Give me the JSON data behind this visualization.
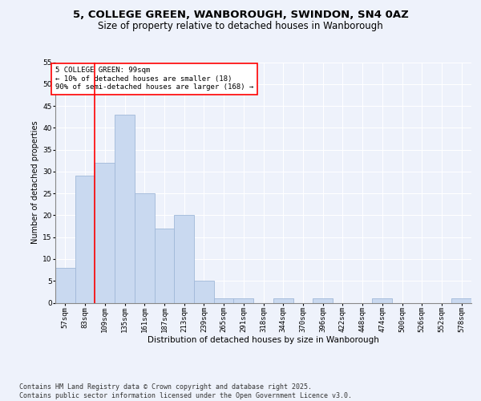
{
  "title1": "5, COLLEGE GREEN, WANBOROUGH, SWINDON, SN4 0AZ",
  "title2": "Size of property relative to detached houses in Wanborough",
  "xlabel": "Distribution of detached houses by size in Wanborough",
  "ylabel": "Number of detached properties",
  "bar_labels": [
    "57sqm",
    "83sqm",
    "109sqm",
    "135sqm",
    "161sqm",
    "187sqm",
    "213sqm",
    "239sqm",
    "265sqm",
    "291sqm",
    "318sqm",
    "344sqm",
    "370sqm",
    "396sqm",
    "422sqm",
    "448sqm",
    "474sqm",
    "500sqm",
    "526sqm",
    "552sqm",
    "578sqm"
  ],
  "bar_values": [
    8,
    29,
    32,
    43,
    25,
    17,
    20,
    5,
    1,
    1,
    0,
    1,
    0,
    1,
    0,
    0,
    1,
    0,
    0,
    0,
    1
  ],
  "bar_color": "#c9d9f0",
  "bar_edge_color": "#a0b8d8",
  "vline_color": "red",
  "vline_x_index": 1.5,
  "annotation_text": "5 COLLEGE GREEN: 99sqm\n← 10% of detached houses are smaller (18)\n90% of semi-detached houses are larger (168) →",
  "background_color": "#eef2fb",
  "grid_color": "#ffffff",
  "ylim": [
    0,
    55
  ],
  "yticks": [
    0,
    5,
    10,
    15,
    20,
    25,
    30,
    35,
    40,
    45,
    50,
    55
  ],
  "footer_text": "Contains HM Land Registry data © Crown copyright and database right 2025.\nContains public sector information licensed under the Open Government Licence v3.0.",
  "title1_fontsize": 9.5,
  "title2_fontsize": 8.5,
  "annotation_fontsize": 6.5,
  "footer_fontsize": 6,
  "axis_label_fontsize": 7.5,
  "tick_fontsize": 6.5,
  "ylabel_fontsize": 7
}
